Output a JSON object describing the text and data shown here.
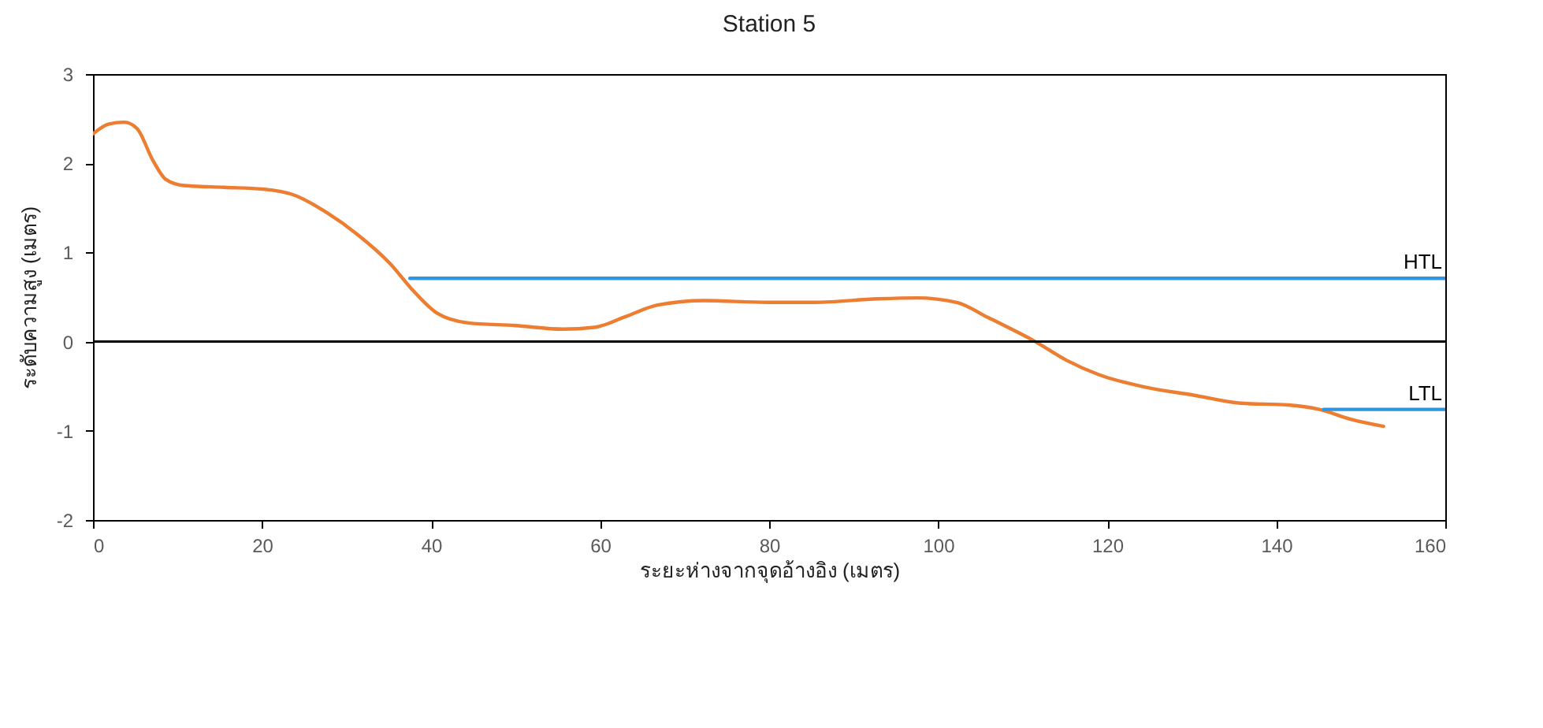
{
  "chart_data": {
    "type": "line",
    "title": "Station 5",
    "xlabel": "ระยะห่างจากจุดอ้างอิง (เมตร)",
    "ylabel": "ระดับความสูง (เมตร)",
    "xlim": [
      0,
      160
    ],
    "xticks": [
      0,
      20,
      40,
      60,
      80,
      100,
      120,
      140,
      160
    ],
    "ylim": [
      -2,
      3
    ],
    "yticks": [
      -2,
      -1,
      0,
      1,
      2,
      3
    ],
    "series": [
      {
        "color": "#ed7d31",
        "x": [
          0,
          1.9,
          3.7,
          5.2,
          7.1,
          8.6,
          10.8,
          15.5,
          20.1,
          23.9,
          27.6,
          31.3,
          35.1,
          37.9,
          40.7,
          44.4,
          50,
          55.6,
          59.3,
          63,
          66.8,
          72.3,
          79.8,
          85.4,
          92.9,
          97.5,
          102.2,
          105.9,
          111.5,
          115.2,
          119,
          124.5,
          130.2,
          135.8,
          141.4,
          145.1,
          148.8,
          152.7
        ],
        "values": [
          2.33,
          2.44,
          2.46,
          2.39,
          2.03,
          1.82,
          1.75,
          1.73,
          1.71,
          1.64,
          1.45,
          1.2,
          0.88,
          0.57,
          0.32,
          0.21,
          0.18,
          0.14,
          0.16,
          0.28,
          0.41,
          0.46,
          0.44,
          0.44,
          0.48,
          0.49,
          0.44,
          0.27,
          0,
          -0.21,
          -0.37,
          -0.51,
          -0.6,
          -0.69,
          -0.71,
          -0.76,
          -0.87,
          -0.95
        ]
      },
      {
        "name": "HTL",
        "color": "#2e95e0",
        "x": [
          37.5,
          160
        ],
        "values": [
          0.71,
          0.71
        ]
      },
      {
        "name": "LTL",
        "color": "#2e95e0",
        "x": [
          145.6,
          160
        ],
        "values": [
          -0.76,
          -0.76
        ]
      }
    ],
    "ref_lines": [
      {
        "axis": "y",
        "value": 0,
        "color": "#000000"
      }
    ],
    "marker": "none",
    "line_style": "solid"
  }
}
